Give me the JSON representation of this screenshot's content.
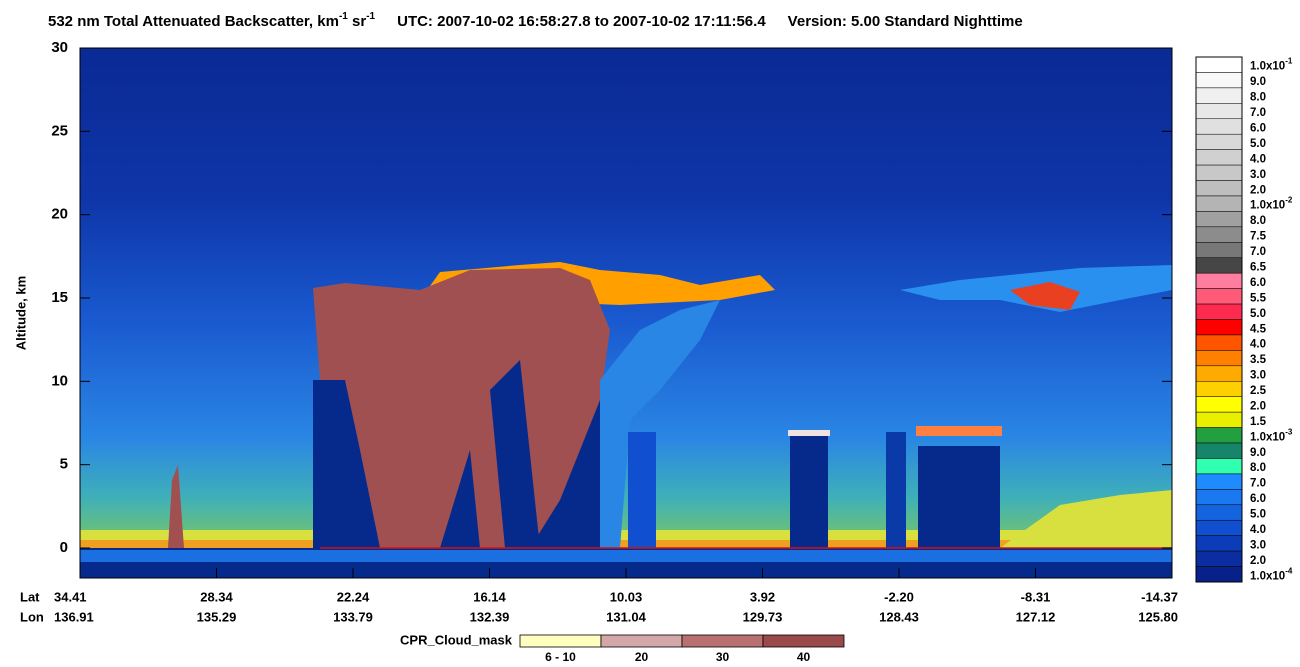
{
  "chart_data": {
    "type": "curtain",
    "title": [
      "532 nm Total Attenuated Backscatter, km",
      "-1",
      " sr",
      "-1"
    ],
    "utc": "UTC:  2007-10-02 16:58:27.8  to  2007-10-02 17:11:56.4",
    "version": "Version: 5.00  Standard  Nighttime",
    "ylabel": "Altitude, km",
    "ylim": [
      -1.8,
      30
    ],
    "yticks": [
      0,
      5,
      10,
      15,
      20,
      25,
      30
    ],
    "x_rows": [
      "Lat",
      "Lon"
    ],
    "lat": [
      "34.41",
      "28.34",
      "22.24",
      "16.14",
      "10.03",
      "3.92",
      "-2.20",
      "-8.31",
      "-14.37"
    ],
    "lon": [
      "136.91",
      "135.29",
      "133.79",
      "132.39",
      "131.04",
      "129.73",
      "128.43",
      "127.12",
      "125.80"
    ],
    "colorbar": {
      "labels": [
        {
          "text": "1.0x10",
          "sup": "-1"
        },
        "9.0",
        "8.0",
        "7.0",
        "6.0",
        "5.0",
        "4.0",
        "3.0",
        "2.0",
        {
          "text": "1.0x10",
          "sup": "-2"
        },
        "8.0",
        "7.5",
        "7.0",
        "6.5",
        "6.0",
        "5.5",
        "5.0",
        "4.5",
        "4.0",
        "3.5",
        "3.0",
        "2.5",
        "2.0",
        "1.5",
        {
          "text": "1.0x10",
          "sup": "-3"
        },
        "9.0",
        "8.0",
        "7.0",
        "6.0",
        "5.0",
        "4.0",
        "3.0",
        "2.0",
        {
          "text": "1.0x10",
          "sup": "-4"
        }
      ],
      "colors": [
        "#ffffff",
        "#f8f8f8",
        "#f0f0f0",
        "#e8e8e8",
        "#e0e0e0",
        "#d8d8d8",
        "#d0d0d0",
        "#c8c8c8",
        "#bebebe",
        "#b4b4b4",
        "#a0a0a0",
        "#8c8c8c",
        "#787878",
        "#464646",
        "#ff7ea0",
        "#ff5a78",
        "#ff2a50",
        "#ff0000",
        "#ff5500",
        "#ff8000",
        "#ffaa00",
        "#ffd000",
        "#ffff00",
        "#e8f000",
        "#22a040",
        "#17856a",
        "#30ffb0",
        "#1e8cff",
        "#1a78f0",
        "#1464e0",
        "#1050d0",
        "#0c3cb8",
        "#0a2ea0",
        "#08208a"
      ]
    },
    "cpr_legend": {
      "title": "CPR_Cloud_mask",
      "labels": [
        "6 - 10",
        "20",
        "30",
        "40"
      ],
      "colors": [
        "#ffffc0",
        "#d4a8a8",
        "#b87070",
        "#9a4a4a"
      ]
    }
  }
}
